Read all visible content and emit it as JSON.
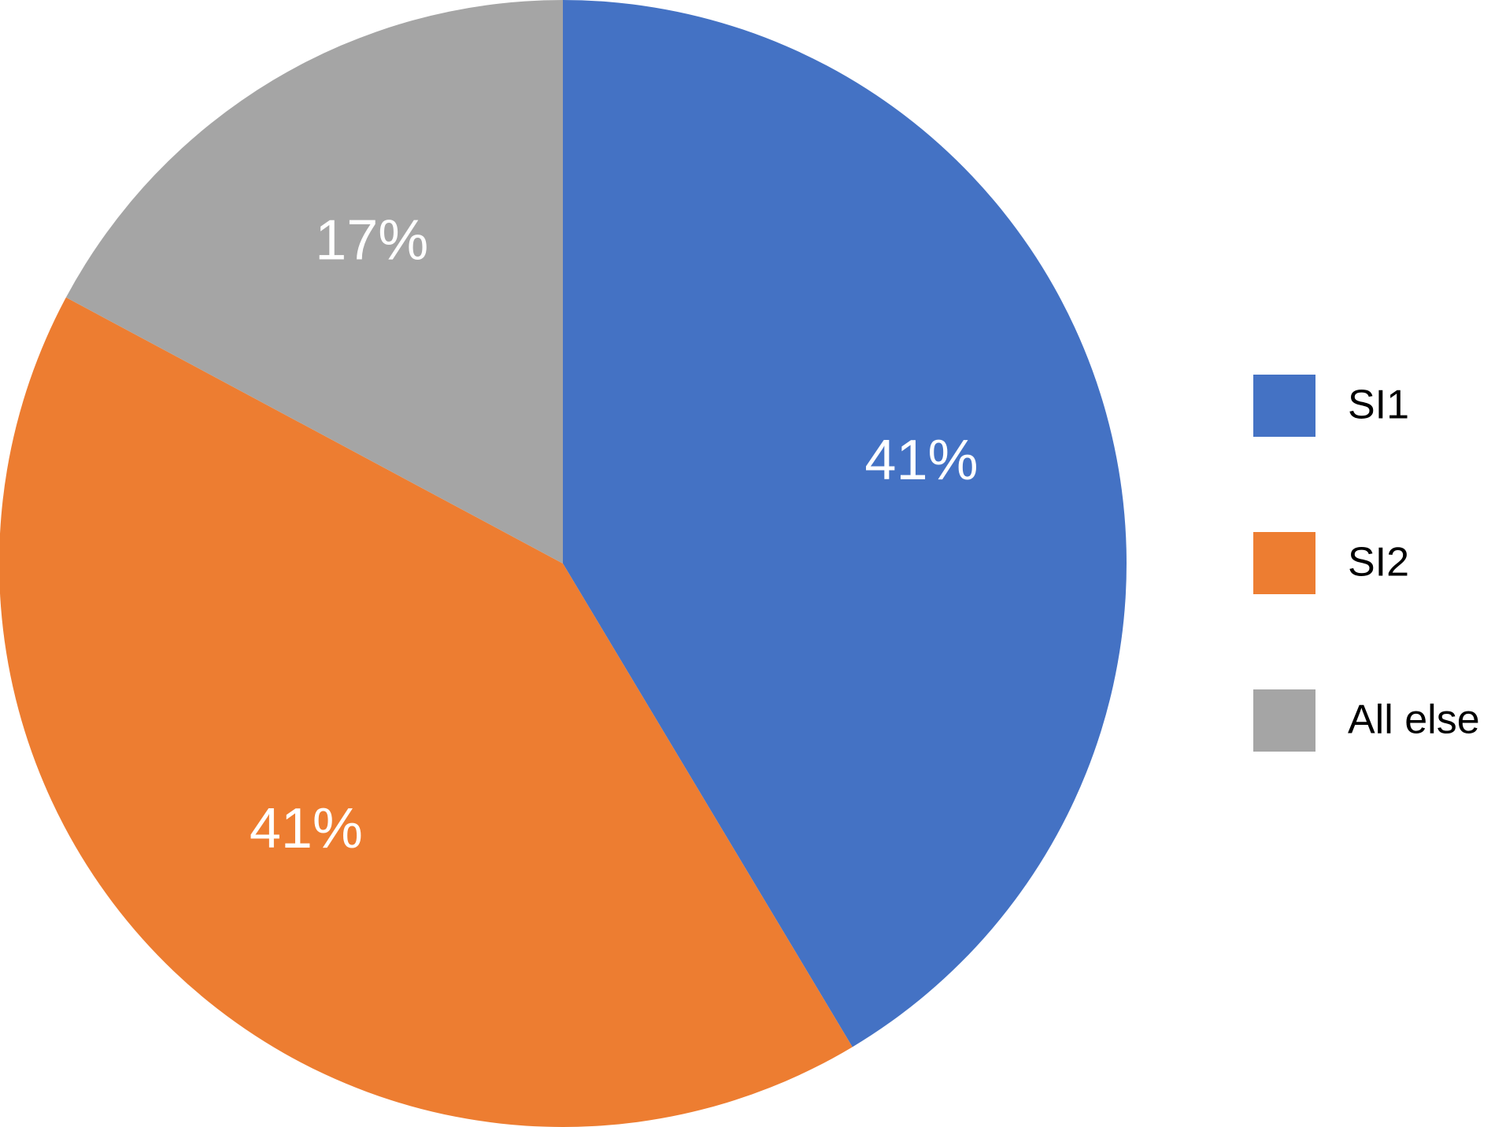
{
  "chart_data": {
    "type": "pie",
    "categories": [
      "SI1",
      "SI2",
      "All else"
    ],
    "values": [
      41,
      41,
      17
    ],
    "value_labels": [
      "41%",
      "41%",
      "17%"
    ],
    "colors": [
      "#4472c4",
      "#ed7d31",
      "#a5a5a5"
    ],
    "legend": "right"
  }
}
